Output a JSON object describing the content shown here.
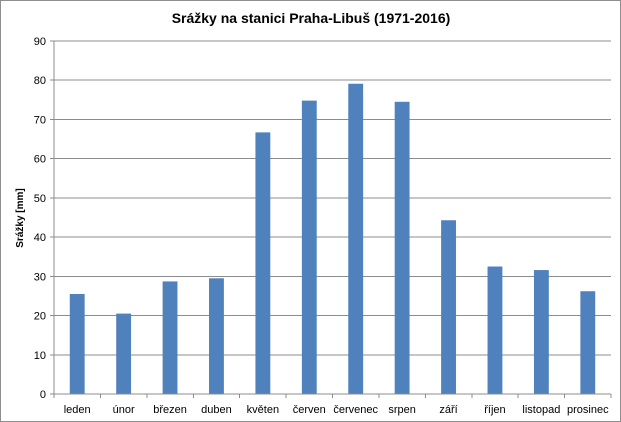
{
  "chart_data": {
    "type": "bar",
    "title": "Srážky na stanici Praha-Libuš (1971-2016)",
    "xlabel": "",
    "ylabel": "Srážky [mm]",
    "ylim": [
      0,
      90
    ],
    "yticks": [
      0,
      10,
      20,
      30,
      40,
      50,
      60,
      70,
      80,
      90
    ],
    "grid": true,
    "legend": "none",
    "bar_color": "#4f81bd",
    "categories": [
      "leden",
      "únor",
      "březen",
      "duben",
      "květen",
      "červen",
      "červenec",
      "srpen",
      "září",
      "říjen",
      "listopad",
      "prosinec"
    ],
    "values": [
      25.5,
      20.5,
      28.7,
      29.5,
      66.7,
      74.8,
      79.1,
      74.5,
      44.3,
      32.5,
      31.6,
      26.2
    ]
  }
}
